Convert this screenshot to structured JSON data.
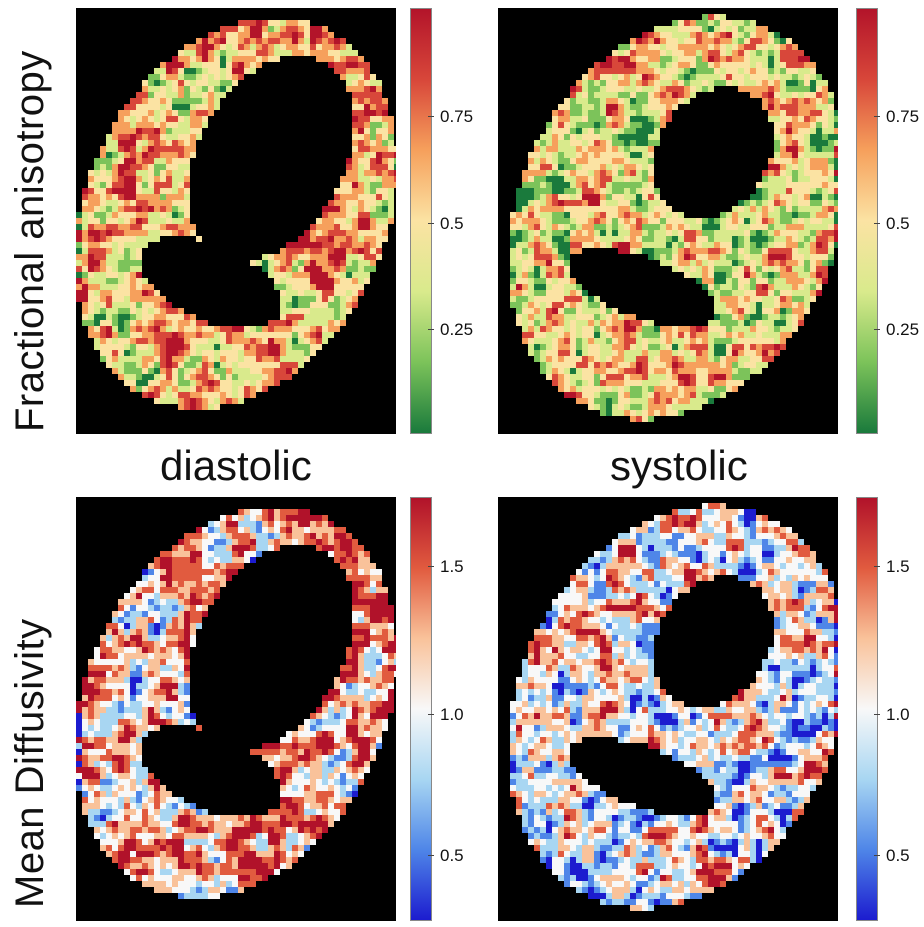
{
  "rows": [
    {
      "label": "Fractional anisotropy",
      "colormap": [
        "#1a7a3c",
        "#7cc35a",
        "#d9ea8c",
        "#fbe3a3",
        "#f6a05c",
        "#d8473a",
        "#b3142a"
      ],
      "colorbar_ticks": [
        "0.75",
        "0.5",
        "0.25"
      ],
      "colorbar_tick_values": [
        0.75,
        0.5,
        0.25
      ],
      "colorbar_range": [
        0,
        1
      ]
    },
    {
      "label": "Mean Diffusivity",
      "colormap": [
        "#1c1ccf",
        "#4f86e8",
        "#a8d6f2",
        "#f8f8f8",
        "#f9c29a",
        "#e15b3f",
        "#b1122a"
      ],
      "colorbar_ticks": [
        "1.5",
        "1.0",
        "0.5"
      ],
      "colorbar_tick_values": [
        1.5,
        1.0,
        0.5
      ],
      "colorbar_range": [
        0.25,
        1.75
      ]
    }
  ],
  "columns": [
    {
      "label": "diastolic"
    },
    {
      "label": "systolic"
    }
  ]
}
